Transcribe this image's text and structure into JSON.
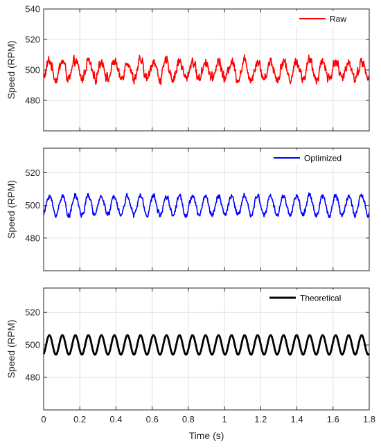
{
  "chart_data": [
    {
      "type": "line",
      "ylabel": "Speed (RPM)",
      "ylim": [
        460,
        540
      ],
      "yticks": [
        480,
        500,
        520,
        540
      ],
      "xlim": [
        0,
        1.8
      ],
      "grid": true,
      "legend_placement": "top-right",
      "series": [
        {
          "name": "Raw",
          "color": "#ff0000",
          "mean": 500,
          "amplitude": 6,
          "frequency_hz": 13.9,
          "noise": 4.5,
          "range": [
            489,
            515
          ]
        }
      ]
    },
    {
      "type": "line",
      "ylabel": "Speed (RPM)",
      "ylim": [
        460,
        535
      ],
      "yticks": [
        480,
        500,
        520
      ],
      "xlim": [
        0,
        1.8
      ],
      "grid": true,
      "legend_placement": "top-right",
      "series": [
        {
          "name": "Optimized",
          "color": "#0000ff",
          "mean": 500,
          "amplitude": 6,
          "frequency_hz": 13.9,
          "noise": 2.2,
          "range": [
            491,
            511
          ]
        }
      ]
    },
    {
      "type": "line",
      "ylabel": "Speed (RPM)",
      "xlabel": "Time (s)",
      "ylim": [
        460,
        535
      ],
      "yticks": [
        480,
        500,
        520
      ],
      "xlim": [
        0,
        1.8
      ],
      "xticks": [
        "0",
        "0.2",
        "0.4",
        "0.6",
        "0.8",
        "1",
        "1.2",
        "1.4",
        "1.6",
        "1.8"
      ],
      "grid": true,
      "legend_placement": "top-right",
      "series": [
        {
          "name": "Theoretical",
          "color": "#000000",
          "mean": 500,
          "amplitude": 6,
          "frequency_hz": 13.9,
          "noise": 0,
          "range": [
            494,
            506
          ]
        }
      ]
    }
  ]
}
